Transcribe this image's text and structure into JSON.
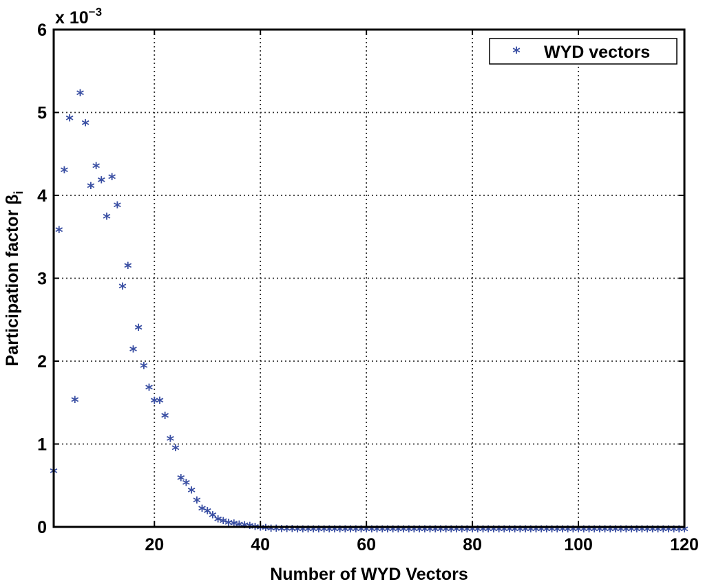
{
  "chart_data": {
    "type": "scatter",
    "title": "",
    "xlabel": "Number of WYD Vectors",
    "ylabel": "Participation factor β",
    "ylabel_subscript": "i",
    "exponent_label": "x 10",
    "exponent_power": "−3",
    "xlim": [
      1,
      120
    ],
    "ylim": [
      0,
      6
    ],
    "grid": true,
    "x_ticks": [
      "20",
      "40",
      "60",
      "80",
      "100",
      "120"
    ],
    "y_ticks": [
      "0",
      "1",
      "2",
      "3",
      "4",
      "5",
      "6"
    ],
    "x_tick_values": [
      20,
      40,
      60,
      80,
      100,
      120
    ],
    "y_tick_values": [
      0,
      1,
      2,
      3,
      4,
      5,
      6
    ],
    "legend": {
      "position": "top-right",
      "entries": [
        {
          "label": "WYD vectors",
          "marker": "*"
        }
      ]
    },
    "series": [
      {
        "name": "WYD vectors",
        "color": "#3a4fa3",
        "marker": "*",
        "x": [
          1,
          2,
          3,
          4,
          5,
          6,
          7,
          8,
          9,
          10,
          11,
          12,
          13,
          14,
          15,
          16,
          17,
          18,
          19,
          20,
          21,
          22,
          23,
          24,
          25,
          26,
          27,
          28,
          29,
          30,
          31,
          32,
          33,
          34,
          35,
          36,
          37,
          38,
          39,
          40,
          41,
          42,
          43,
          44,
          45,
          46,
          47,
          48,
          49,
          50,
          51,
          52,
          53,
          54,
          55,
          56,
          57,
          58,
          59,
          60,
          61,
          62,
          63,
          64,
          65,
          66,
          67,
          68,
          69,
          70,
          71,
          72,
          73,
          74,
          75,
          76,
          77,
          78,
          79,
          80,
          81,
          82,
          83,
          84,
          85,
          86,
          87,
          88,
          89,
          90,
          91,
          92,
          93,
          94,
          95,
          96,
          97,
          98,
          99,
          100,
          101,
          102,
          103,
          104,
          105,
          106,
          107,
          108,
          109,
          110,
          111,
          112,
          113,
          114,
          115,
          116,
          117,
          118,
          119,
          120
        ],
        "y": [
          0.7,
          3.61,
          4.33,
          4.96,
          1.56,
          5.26,
          4.9,
          4.14,
          4.38,
          4.21,
          3.77,
          4.25,
          3.91,
          2.93,
          3.18,
          2.17,
          2.43,
          1.97,
          1.71,
          1.55,
          1.55,
          1.37,
          1.09,
          0.98,
          0.62,
          0.56,
          0.47,
          0.35,
          0.25,
          0.22,
          0.17,
          0.12,
          0.1,
          0.08,
          0.07,
          0.06,
          0.05,
          0.04,
          0.03,
          0.02,
          0.015,
          0.01,
          0.008,
          0.006,
          0.004,
          0.003,
          0.002,
          0.001,
          0,
          0,
          0,
          0,
          0,
          0,
          0,
          0,
          0,
          0,
          0,
          0,
          0,
          0,
          0,
          0,
          0,
          0,
          0,
          0,
          0,
          0,
          0,
          0,
          0,
          0,
          0,
          0,
          0,
          0,
          0,
          0,
          0,
          0,
          0,
          0,
          0,
          0,
          0,
          0,
          0,
          0,
          0,
          0,
          0,
          0,
          0,
          0,
          0,
          0,
          0,
          0,
          0,
          0,
          0,
          0,
          0,
          0,
          0,
          0,
          0,
          0,
          0,
          0,
          0,
          0,
          0,
          0,
          0,
          0,
          0,
          0
        ]
      }
    ]
  }
}
